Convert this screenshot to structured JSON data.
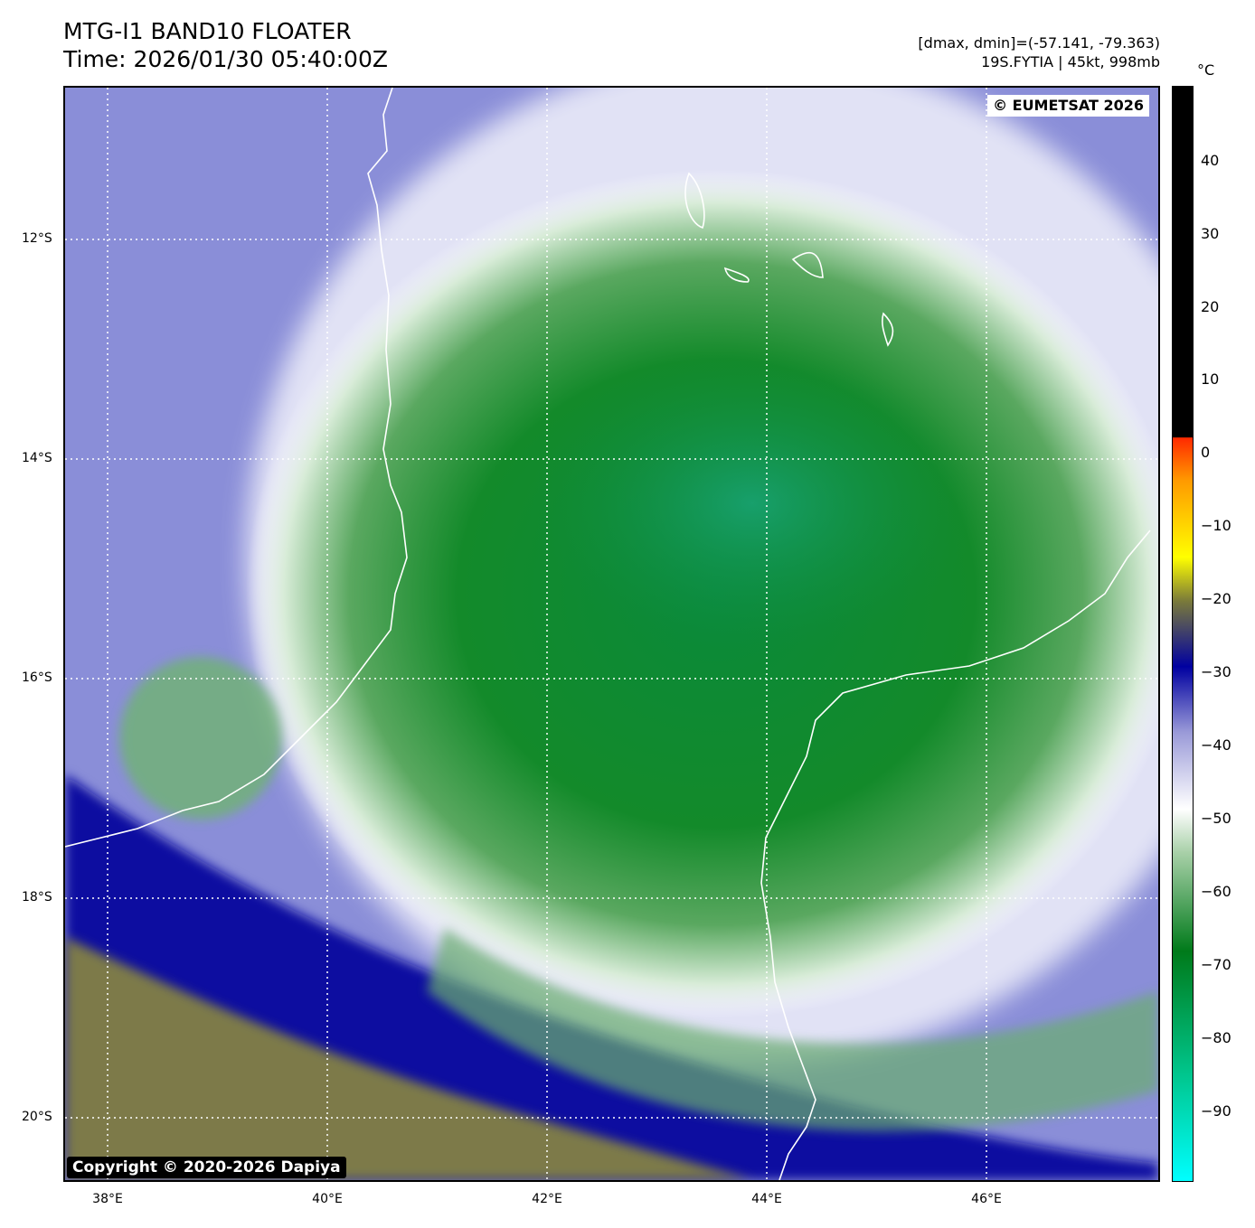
{
  "header": {
    "title": "MTG-I1 BAND10 FLOATER",
    "time": "Time: 2026/01/30 05:40:00Z",
    "range_text": "[dmax, dmin]=(-57.141, -79.363)",
    "storm_text": "19S.FYTIA | 45kt, 998mb"
  },
  "map": {
    "credit": "© EUMETSAT 2026",
    "copyright": "Copyright © 2020-2026 Dapiya",
    "latitude_labels": [
      "12°S",
      "14°S",
      "16°S",
      "18°S",
      "20°S"
    ],
    "longitude_labels": [
      "38°E",
      "40°E",
      "42°E",
      "44°E",
      "46°E"
    ],
    "gridlines": "dotted white"
  },
  "colorbar": {
    "unit": "°C",
    "tick_labels": [
      "40",
      "30",
      "20",
      "10",
      "0",
      "−10",
      "−20",
      "−30",
      "−40",
      "−50",
      "−60",
      "−70",
      "−80",
      "−90"
    ],
    "colors": {
      "warm": "#000000",
      "zero": "#ff2a00",
      "orange": "#ff9a00",
      "yellow": "#ffff00",
      "olive": "#7a7a3a",
      "navy": "#0000a0",
      "lavender": "#9a9ad8",
      "white": "#ffffff",
      "light_green": "#a8d0a8",
      "dark_green": "#007a1a",
      "teal": "#00c48a",
      "cyan": "#00ffff"
    }
  }
}
